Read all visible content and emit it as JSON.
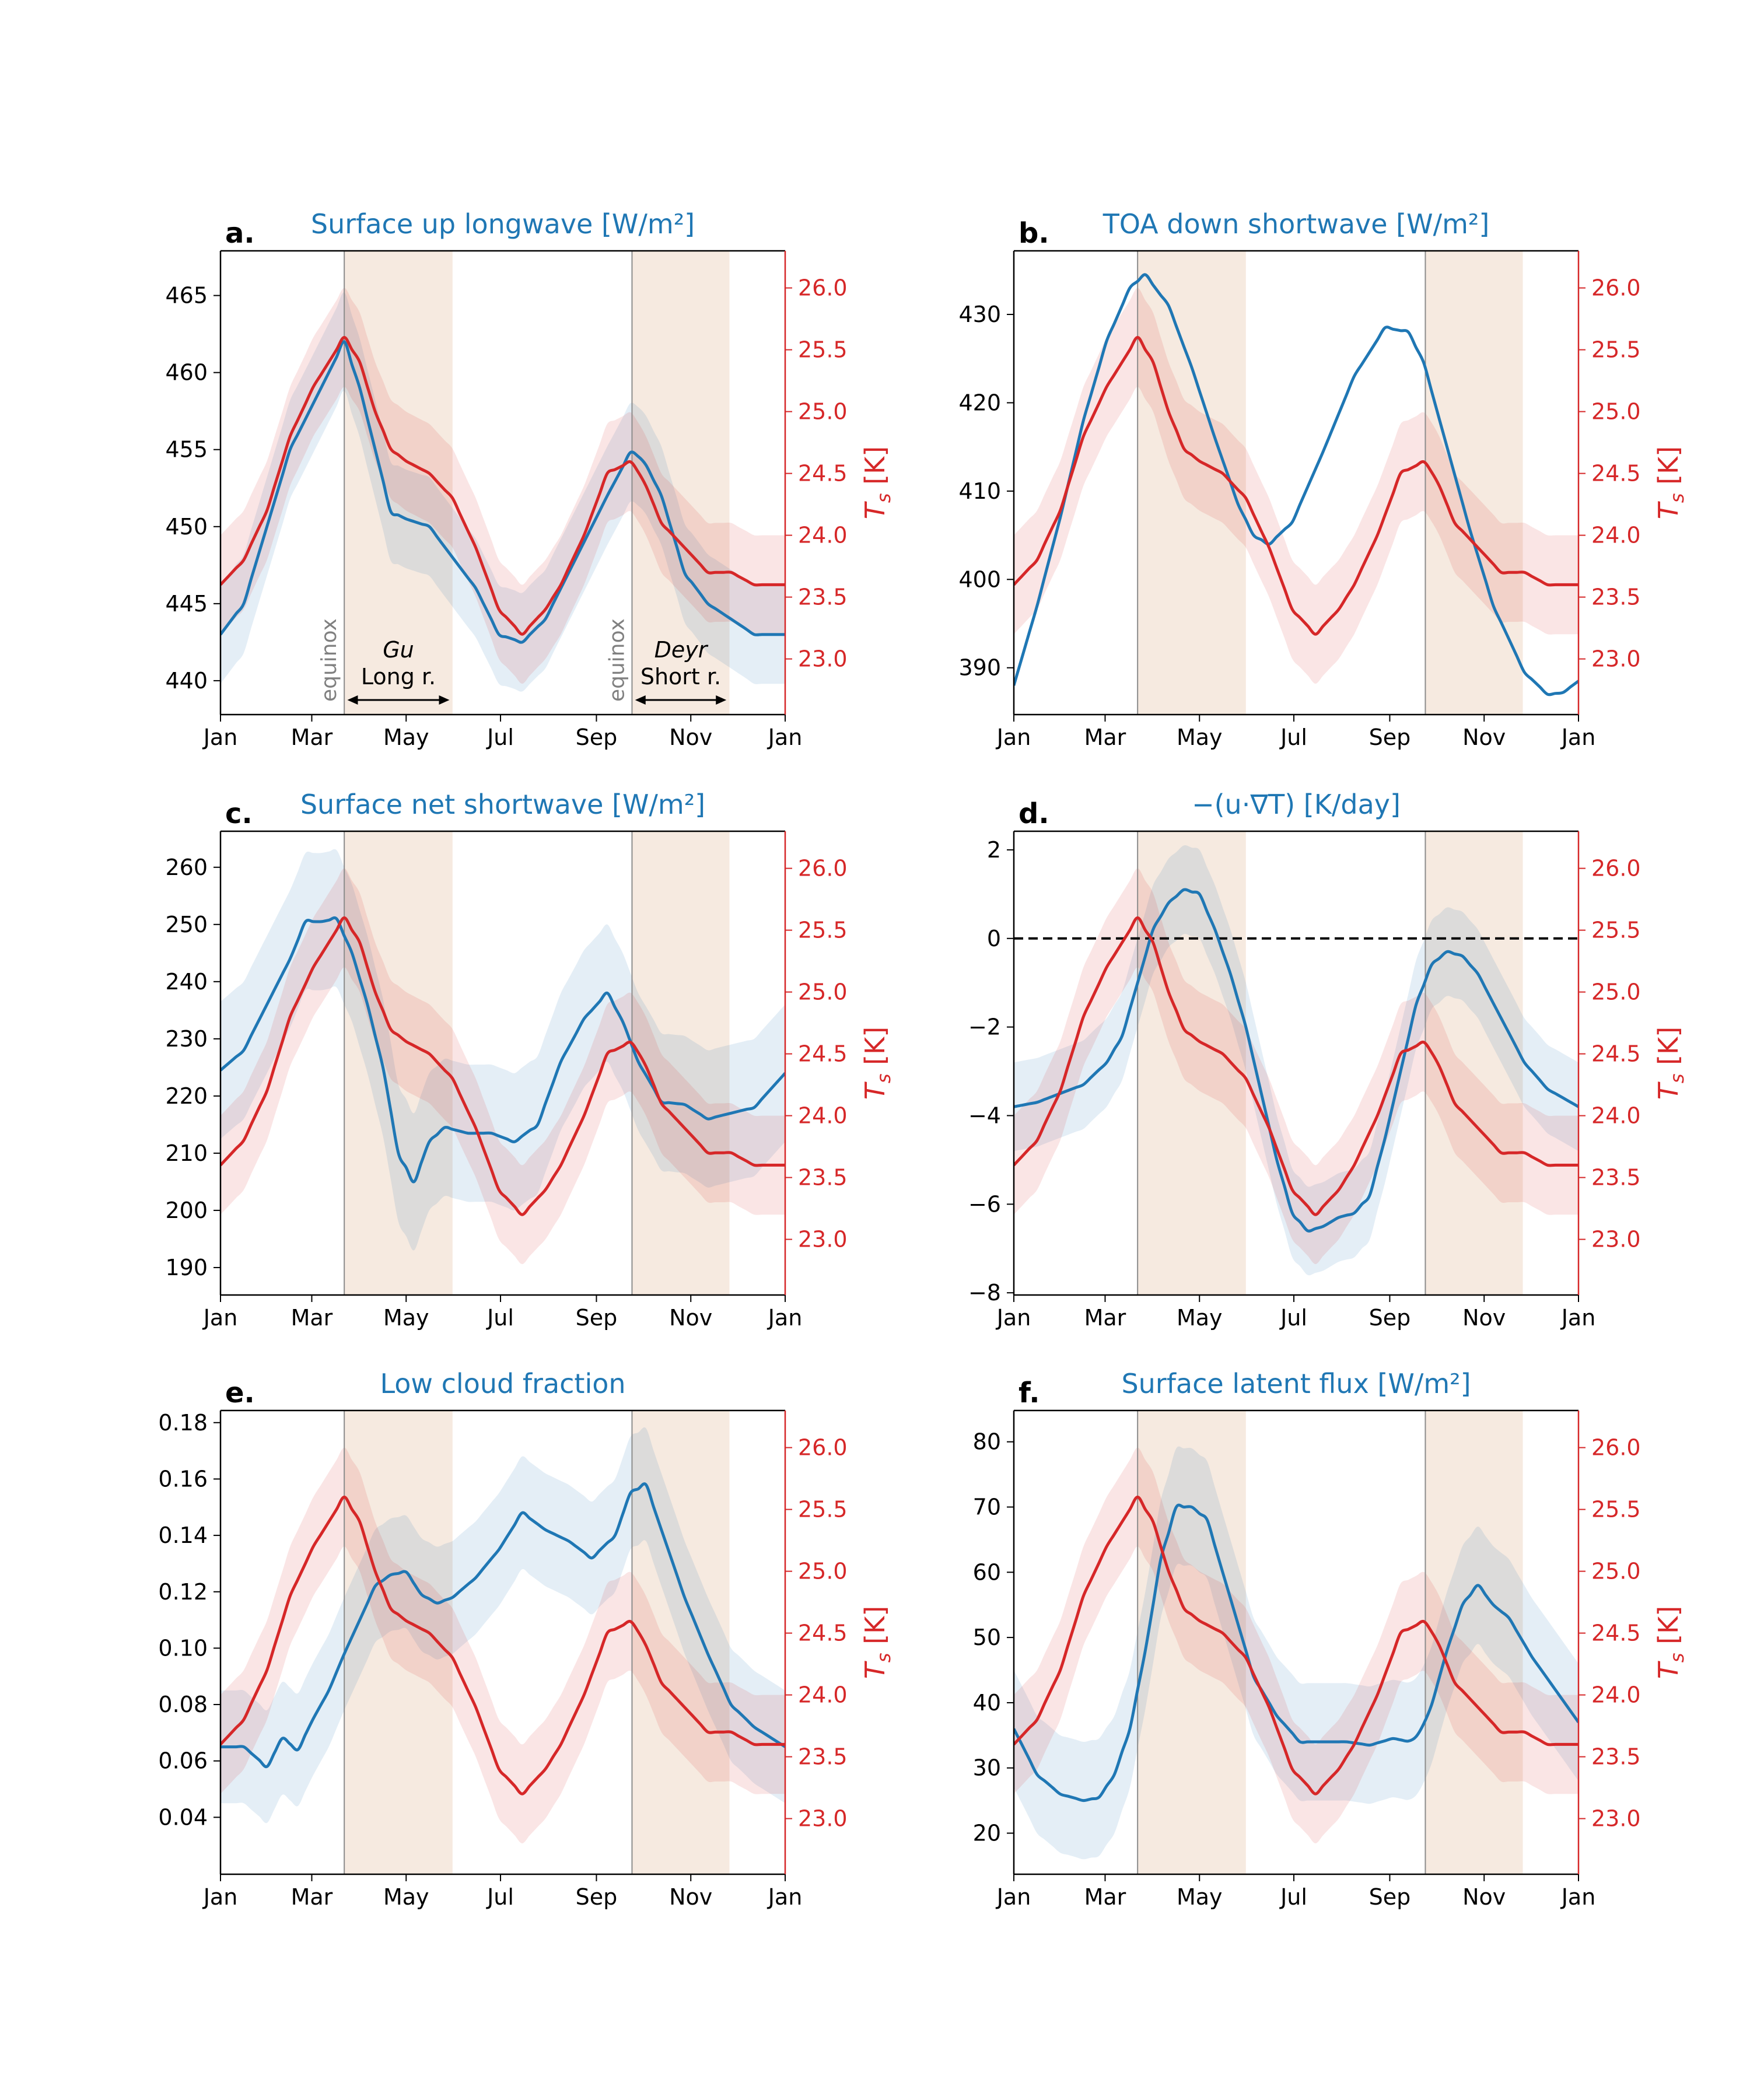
{
  "colors": {
    "blue": "#1f77b4",
    "red": "#d62728",
    "season_fill": "#f3e3d5",
    "equinox_line": "#8c8c8c",
    "note_gray": "#808080",
    "axis": "#000000"
  },
  "month_ticks": [
    "Jan",
    "Mar",
    "May",
    "Jul",
    "Sep",
    "Nov",
    "Jan"
  ],
  "right_axis_label": "T_s [K]",
  "right_ticks": [
    23.0,
    23.5,
    24.0,
    24.5,
    25.0,
    25.5,
    26.0
  ],
  "right_ylim": [
    22.55,
    26.3
  ],
  "seasons": [
    {
      "start_day": 80,
      "end_day": 150
    },
    {
      "start_day": 266,
      "end_day": 329
    }
  ],
  "equinoxes": [
    80,
    266
  ],
  "annotations": {
    "equinox_label": "equinox",
    "gu_name": "Gu",
    "gu_sub": "Long r.",
    "deyr_name": "Deyr",
    "deyr_sub": "Short r."
  },
  "chart_data": [
    {
      "id": "a",
      "panel_label": "a.",
      "type": "line",
      "title": "Surface up longwave [W/m²]",
      "ylim": [
        437.8,
        467.9
      ],
      "yticks": [
        440,
        445,
        450,
        455,
        460,
        465
      ],
      "ytick_format": "int",
      "annotated": true,
      "blue": {
        "x": [
          0,
          15,
          30,
          45,
          60,
          70,
          80,
          90,
          100,
          110,
          120,
          135,
          150,
          165,
          180,
          195,
          210,
          220,
          235,
          250,
          266,
          275,
          285,
          300,
          315,
          330,
          345,
          365
        ],
        "y": [
          443,
          445,
          450,
          455,
          458,
          460,
          462,
          459,
          455,
          451,
          450.5,
          450,
          448,
          446,
          443,
          442.5,
          444,
          446,
          449,
          452,
          455,
          454,
          452,
          447,
          445,
          444,
          443,
          443
        ],
        "spread": 3.2
      },
      "red": {
        "x": [
          0,
          15,
          30,
          45,
          60,
          70,
          80,
          90,
          100,
          110,
          120,
          135,
          150,
          165,
          180,
          195,
          210,
          220,
          235,
          250,
          266,
          275,
          285,
          300,
          315,
          330,
          345,
          365
        ],
        "y": [
          23.6,
          23.8,
          24.2,
          24.8,
          25.2,
          25.4,
          25.6,
          25.4,
          25.0,
          24.7,
          24.6,
          24.5,
          24.3,
          23.9,
          23.4,
          23.2,
          23.4,
          23.6,
          24.0,
          24.5,
          24.6,
          24.4,
          24.1,
          23.9,
          23.7,
          23.7,
          23.6,
          23.6
        ],
        "spread": 0.4
      }
    },
    {
      "id": "b",
      "panel_label": "b.",
      "type": "line",
      "title": "TOA down shortwave [W/m²]",
      "ylim": [
        384.7,
        437.2
      ],
      "yticks": [
        390,
        400,
        410,
        420,
        430
      ],
      "ytick_format": "int",
      "annotated": false,
      "blue": {
        "x": [
          0,
          15,
          30,
          45,
          60,
          75,
          85,
          100,
          115,
          130,
          145,
          155,
          165,
          180,
          200,
          220,
          240,
          255,
          265,
          280,
          295,
          310,
          330,
          345,
          355,
          365
        ],
        "y": [
          388,
          397,
          407,
          418,
          427,
          433,
          434.5,
          431,
          424,
          416,
          408.5,
          405,
          404,
          406.5,
          414.5,
          423,
          428.5,
          428,
          424.5,
          415,
          405.5,
          397,
          389.5,
          387,
          387.2,
          388.5
        ],
        "spread": 0
      },
      "red": {
        "x": [
          0,
          15,
          30,
          45,
          60,
          70,
          80,
          90,
          100,
          110,
          120,
          135,
          150,
          165,
          180,
          195,
          210,
          220,
          235,
          250,
          266,
          275,
          285,
          300,
          315,
          330,
          345,
          365
        ],
        "y": [
          23.6,
          23.8,
          24.2,
          24.8,
          25.2,
          25.4,
          25.6,
          25.4,
          25.0,
          24.7,
          24.6,
          24.5,
          24.3,
          23.9,
          23.4,
          23.2,
          23.4,
          23.6,
          24.0,
          24.5,
          24.6,
          24.4,
          24.1,
          23.9,
          23.7,
          23.7,
          23.6,
          23.6
        ],
        "spread": 0.4
      }
    },
    {
      "id": "c",
      "panel_label": "c.",
      "type": "line",
      "title": "Surface net shortwave [W/m²]",
      "ylim": [
        185.2,
        266.3
      ],
      "yticks": [
        190,
        200,
        210,
        220,
        230,
        240,
        250,
        260
      ],
      "ytick_format": "int",
      "annotated": false,
      "blue": {
        "x": [
          0,
          15,
          30,
          45,
          55,
          65,
          75,
          85,
          95,
          105,
          115,
          125,
          135,
          145,
          160,
          175,
          190,
          205,
          220,
          235,
          250,
          260,
          270,
          285,
          300,
          315,
          330,
          345,
          365
        ],
        "y": [
          224.5,
          228,
          236,
          244,
          250.5,
          250.5,
          251,
          245,
          236,
          225,
          210,
          205,
          212,
          214.5,
          213.5,
          213.5,
          212,
          215,
          226,
          233.5,
          238,
          233,
          226,
          219,
          218.5,
          216,
          217,
          218,
          224
        ],
        "spread": 12
      },
      "red": {
        "x": [
          0,
          15,
          30,
          45,
          60,
          70,
          80,
          90,
          100,
          110,
          120,
          135,
          150,
          165,
          180,
          195,
          210,
          220,
          235,
          250,
          266,
          275,
          285,
          300,
          315,
          330,
          345,
          365
        ],
        "y": [
          23.6,
          23.8,
          24.2,
          24.8,
          25.2,
          25.4,
          25.6,
          25.4,
          25.0,
          24.7,
          24.6,
          24.5,
          24.3,
          23.9,
          23.4,
          23.2,
          23.4,
          23.6,
          24.0,
          24.5,
          24.6,
          24.4,
          24.1,
          23.9,
          23.7,
          23.7,
          23.6,
          23.6
        ],
        "spread": 0.4
      }
    },
    {
      "id": "d",
      "panel_label": "d.",
      "type": "line",
      "title": "−(u·∇T) [K/day]",
      "ylim": [
        -8.05,
        2.42
      ],
      "yticks": [
        -8,
        -6,
        -4,
        -2,
        0,
        2
      ],
      "ytick_format": "signed",
      "annotated": false,
      "zero_line": true,
      "blue": {
        "x": [
          0,
          15,
          30,
          45,
          60,
          70,
          80,
          90,
          100,
          110,
          120,
          130,
          140,
          150,
          160,
          170,
          180,
          190,
          200,
          210,
          220,
          230,
          240,
          250,
          260,
          270,
          280,
          290,
          300,
          315,
          330,
          345,
          365
        ],
        "y": [
          -3.8,
          -3.7,
          -3.5,
          -3.3,
          -2.8,
          -2.2,
          -1.0,
          0.2,
          0.8,
          1.1,
          1.0,
          0.2,
          -0.8,
          -2.0,
          -3.5,
          -5.0,
          -6.2,
          -6.6,
          -6.5,
          -6.3,
          -6.2,
          -5.8,
          -4.5,
          -3.0,
          -1.5,
          -0.6,
          -0.3,
          -0.4,
          -0.8,
          -1.8,
          -2.8,
          -3.4,
          -3.8
        ],
        "spread": 1.0
      },
      "red": {
        "x": [
          0,
          15,
          30,
          45,
          60,
          70,
          80,
          90,
          100,
          110,
          120,
          135,
          150,
          165,
          180,
          195,
          210,
          220,
          235,
          250,
          266,
          275,
          285,
          300,
          315,
          330,
          345,
          365
        ],
        "y": [
          23.6,
          23.8,
          24.2,
          24.8,
          25.2,
          25.4,
          25.6,
          25.4,
          25.0,
          24.7,
          24.6,
          24.5,
          24.3,
          23.9,
          23.4,
          23.2,
          23.4,
          23.6,
          24.0,
          24.5,
          24.6,
          24.4,
          24.1,
          23.9,
          23.7,
          23.7,
          23.6,
          23.6
        ],
        "spread": 0.4
      }
    },
    {
      "id": "e",
      "panel_label": "e.",
      "type": "line",
      "title": "Low cloud fraction",
      "ylim": [
        0.0198,
        0.1843
      ],
      "yticks": [
        0.04,
        0.06,
        0.08,
        0.1,
        0.12,
        0.14,
        0.16,
        0.18
      ],
      "ytick_format": "2dec",
      "annotated": false,
      "blue": {
        "x": [
          0,
          15,
          30,
          40,
          50,
          60,
          70,
          80,
          90,
          100,
          110,
          120,
          130,
          140,
          150,
          165,
          180,
          195,
          210,
          225,
          240,
          255,
          265,
          275,
          285,
          300,
          315,
          330,
          345,
          365
        ],
        "y": [
          0.065,
          0.065,
          0.058,
          0.068,
          0.064,
          0.075,
          0.085,
          0.098,
          0.11,
          0.122,
          0.126,
          0.127,
          0.119,
          0.116,
          0.118,
          0.125,
          0.135,
          0.148,
          0.142,
          0.138,
          0.132,
          0.14,
          0.155,
          0.158,
          0.142,
          0.118,
          0.098,
          0.08,
          0.072,
          0.065
        ],
        "spread": 0.02
      },
      "red": {
        "x": [
          0,
          15,
          30,
          45,
          60,
          70,
          80,
          90,
          100,
          110,
          120,
          135,
          150,
          165,
          180,
          195,
          210,
          220,
          235,
          250,
          266,
          275,
          285,
          300,
          315,
          330,
          345,
          365
        ],
        "y": [
          23.6,
          23.8,
          24.2,
          24.8,
          25.2,
          25.4,
          25.6,
          25.4,
          25.0,
          24.7,
          24.6,
          24.5,
          24.3,
          23.9,
          23.4,
          23.2,
          23.4,
          23.6,
          24.0,
          24.5,
          24.6,
          24.4,
          24.1,
          23.9,
          23.7,
          23.7,
          23.6,
          23.6
        ],
        "spread": 0.4
      }
    },
    {
      "id": "f",
      "panel_label": "f.",
      "type": "line",
      "title": "Surface latent flux [W/m²]",
      "ylim": [
        13.7,
        84.8
      ],
      "yticks": [
        20,
        30,
        40,
        50,
        60,
        70,
        80
      ],
      "ytick_format": "int",
      "annotated": false,
      "blue": {
        "x": [
          0,
          15,
          30,
          45,
          55,
          65,
          75,
          85,
          95,
          105,
          115,
          125,
          140,
          155,
          170,
          185,
          200,
          215,
          230,
          245,
          258,
          268,
          280,
          290,
          300,
          310,
          320,
          335,
          350,
          365
        ],
        "y": [
          36,
          29,
          26,
          25,
          25.5,
          29,
          36,
          48,
          62,
          70,
          70,
          68,
          56,
          44,
          38,
          34,
          34,
          34,
          33.5,
          34.5,
          34,
          38,
          48,
          55,
          58,
          55,
          53,
          47,
          42,
          37
        ],
        "spread": 9
      },
      "red": {
        "x": [
          0,
          15,
          30,
          45,
          60,
          70,
          80,
          90,
          100,
          110,
          120,
          135,
          150,
          165,
          180,
          195,
          210,
          220,
          235,
          250,
          266,
          275,
          285,
          300,
          315,
          330,
          345,
          365
        ],
        "y": [
          23.6,
          23.8,
          24.2,
          24.8,
          25.2,
          25.4,
          25.6,
          25.4,
          25.0,
          24.7,
          24.6,
          24.5,
          24.3,
          23.9,
          23.4,
          23.2,
          23.4,
          23.6,
          24.0,
          24.5,
          24.6,
          24.4,
          24.1,
          23.9,
          23.7,
          23.7,
          23.6,
          23.6
        ],
        "spread": 0.4
      }
    }
  ]
}
